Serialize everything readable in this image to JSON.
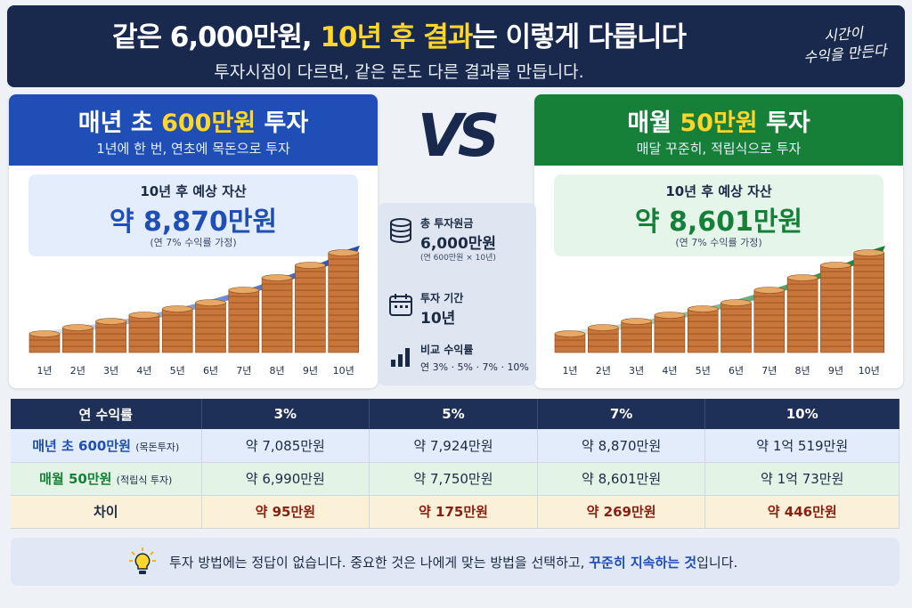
{
  "header": {
    "title_a": "같은 6,000만원, ",
    "title_hl": "10년 후 결과",
    "title_b": "는 이렇게 다릅니다",
    "subtitle": "투자시점이 다르면, 같은 돈도 다른 결과를 만듭니다.",
    "side_note_1": "시간이",
    "side_note_2": "수익을 만든다"
  },
  "left": {
    "title_a": "매년 초 ",
    "title_hl": "600만원",
    "title_b": " 투자",
    "subtitle": "1년에 한 번, 연초에 목돈으로 투자",
    "box_label": "10년 후 예상 자산",
    "box_value": "약 8,870만원",
    "box_note": "(연 7% 수익률 가정)",
    "accent": "#1f4fb6"
  },
  "right": {
    "title_a": "매월 ",
    "title_hl": "50만원",
    "title_b": " 투자",
    "subtitle": "매달 꾸준히, 적립식으로 투자",
    "box_label": "10년 후 예상 자산",
    "box_value": "약 8,601만원",
    "box_note": "(연 7% 수익률 가정)",
    "accent": "#178038"
  },
  "vs": "VS",
  "years": [
    "1년",
    "2년",
    "3년",
    "4년",
    "5년",
    "6년",
    "7년",
    "8년",
    "9년",
    "10년"
  ],
  "coin_levels": [
    3,
    4,
    5,
    6,
    7,
    8,
    10,
    12,
    14,
    16
  ],
  "info": {
    "principal_label": "총 투자원금",
    "principal_value": "6,000만원",
    "principal_note": "(연 600만원 × 10년)",
    "period_label": "투자 기간",
    "period_value": "10년",
    "returns_label": "비교 수익률",
    "returns_value": "연 3% · 5% · 7% · 10%"
  },
  "table": {
    "headers": [
      "연 수익률",
      "3%",
      "5%",
      "7%",
      "10%"
    ],
    "row1_label": "매년 초 600만원",
    "row1_note": "(목돈투자)",
    "row1": [
      "약 7,085만원",
      "약 7,924만원",
      "약 8,870만원",
      "약 1억 519만원"
    ],
    "row2_label": "매월 50만원",
    "row2_note": "(적립식 투자)",
    "row2": [
      "약 6,990만원",
      "약 7,750만원",
      "약 8,601만원",
      "약 1억 73만원"
    ],
    "row3_label": "차이",
    "row3": [
      "약 95만원",
      "약 175만원",
      "약 269만원",
      "약 446만원"
    ]
  },
  "footer": {
    "text_a": "투자 방법에는 정답이 없습니다. 중요한 것은 나에게 맞는 방법을 선택하고, ",
    "text_hl": "꾸준히 지속하는 것",
    "text_b": "입니다."
  }
}
